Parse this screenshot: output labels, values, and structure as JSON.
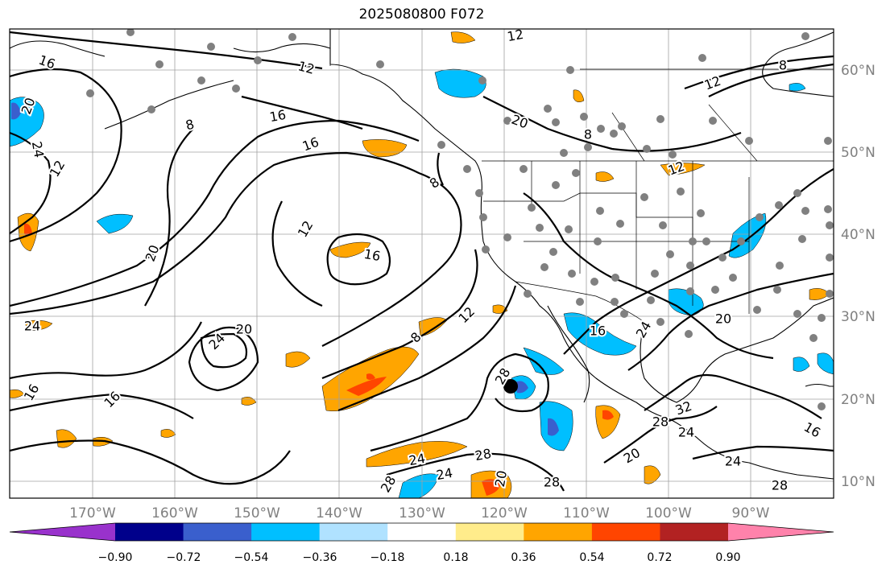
{
  "title": "2025080800 F072",
  "lon_ticks": [
    "170°W",
    "160°W",
    "150°W",
    "140°W",
    "130°W",
    "120°W",
    "110°W",
    "100°W",
    "90°W"
  ],
  "lat_ticks": [
    "60°N",
    "50°N",
    "40°N",
    "30°N",
    "20°N",
    "10°N"
  ],
  "colorbar": {
    "tick_labels": [
      "−0.90",
      "−0.72",
      "−0.54",
      "−0.36",
      "−0.18",
      "0.18",
      "0.36",
      "0.54",
      "0.72",
      "0.90"
    ],
    "colors": [
      "#9932cc",
      "#00008b",
      "#3a5fcd",
      "#00bfff",
      "#b0e2ff",
      "#ffffff",
      "#ffec8b",
      "#ffa500",
      "#ff4500",
      "#b22222",
      "#ff82ab"
    ]
  },
  "contour_labels": [
    {
      "text": "16"
    },
    {
      "text": "12"
    },
    {
      "text": "12"
    },
    {
      "text": "8"
    },
    {
      "text": "20"
    },
    {
      "text": "24"
    },
    {
      "text": "12"
    },
    {
      "text": "8"
    },
    {
      "text": "16"
    },
    {
      "text": "16"
    },
    {
      "text": "20"
    },
    {
      "text": "8"
    },
    {
      "text": "12"
    },
    {
      "text": "16"
    },
    {
      "text": "20"
    },
    {
      "text": "12"
    },
    {
      "text": "24"
    },
    {
      "text": "20"
    },
    {
      "text": "24"
    },
    {
      "text": "16"
    },
    {
      "text": "16"
    },
    {
      "text": "8"
    },
    {
      "text": "12"
    },
    {
      "text": "28"
    },
    {
      "text": "24"
    },
    {
      "text": "28"
    },
    {
      "text": "28"
    },
    {
      "text": "20"
    },
    {
      "text": "28"
    },
    {
      "text": "24"
    },
    {
      "text": "16"
    },
    {
      "text": "24"
    },
    {
      "text": "20"
    },
    {
      "text": "32"
    },
    {
      "text": "28"
    },
    {
      "text": "24"
    },
    {
      "text": "16"
    },
    {
      "text": "20"
    },
    {
      "text": "24"
    },
    {
      "text": "28"
    },
    {
      "text": "12"
    },
    {
      "text": "8"
    }
  ]
}
